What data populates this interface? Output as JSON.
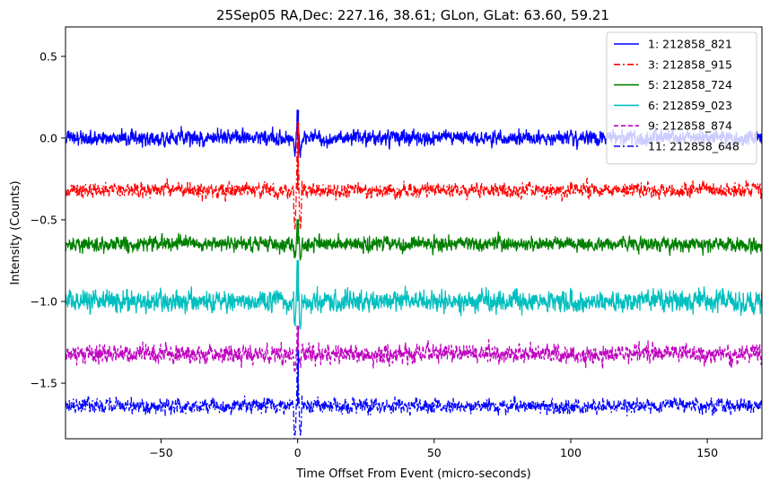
{
  "chart_data": {
    "type": "line",
    "title": "25Sep05 RA,Dec:  227.16,  38.61; GLon, GLat:   63.60,  59.21",
    "xlabel": "Time Offset From Event (micro-seconds)",
    "ylabel": "Intensity (Counts)",
    "xlim": [
      -85,
      170
    ],
    "ylim": [
      -1.84,
      0.68
    ],
    "xticks": [
      -50,
      0,
      50,
      100,
      150
    ],
    "xtick_labels": [
      "−50",
      "0",
      "50",
      "100",
      "150"
    ],
    "yticks": [
      0.5,
      0.0,
      -0.5,
      -1.0,
      -1.5
    ],
    "ytick_labels": [
      "0.5",
      "0.0",
      "−0.5",
      "−1.0",
      "−1.5"
    ],
    "grid": false,
    "legend_position": "top-right",
    "event_time": 0,
    "series": [
      {
        "name": "1: 212858_821",
        "color": "#0000ff",
        "style": "solid",
        "baseline": 0.0,
        "noise": 0.035,
        "event_peak": 0.17
      },
      {
        "name": "3: 212858_915",
        "color": "#ff0000",
        "style": "dashdot",
        "baseline": -0.32,
        "noise": 0.035,
        "event_peak": 0.1
      },
      {
        "name": "5: 212858_724",
        "color": "#008000",
        "style": "solid",
        "baseline": -0.65,
        "noise": 0.035,
        "event_peak": -0.5
      },
      {
        "name": "6: 212859_023",
        "color": "#00bfbf",
        "style": "solid",
        "baseline": -1.0,
        "noise": 0.05,
        "event_peak": -0.75
      },
      {
        "name": "9: 212858_874",
        "color": "#bf00bf",
        "style": "dashed",
        "baseline": -1.32,
        "noise": 0.045,
        "event_peak": -1.15
      },
      {
        "name": "11: 212858_648",
        "color": "#0000ff",
        "style": "dashdot",
        "baseline": -1.64,
        "noise": 0.035,
        "event_peak": -1.3
      }
    ]
  }
}
